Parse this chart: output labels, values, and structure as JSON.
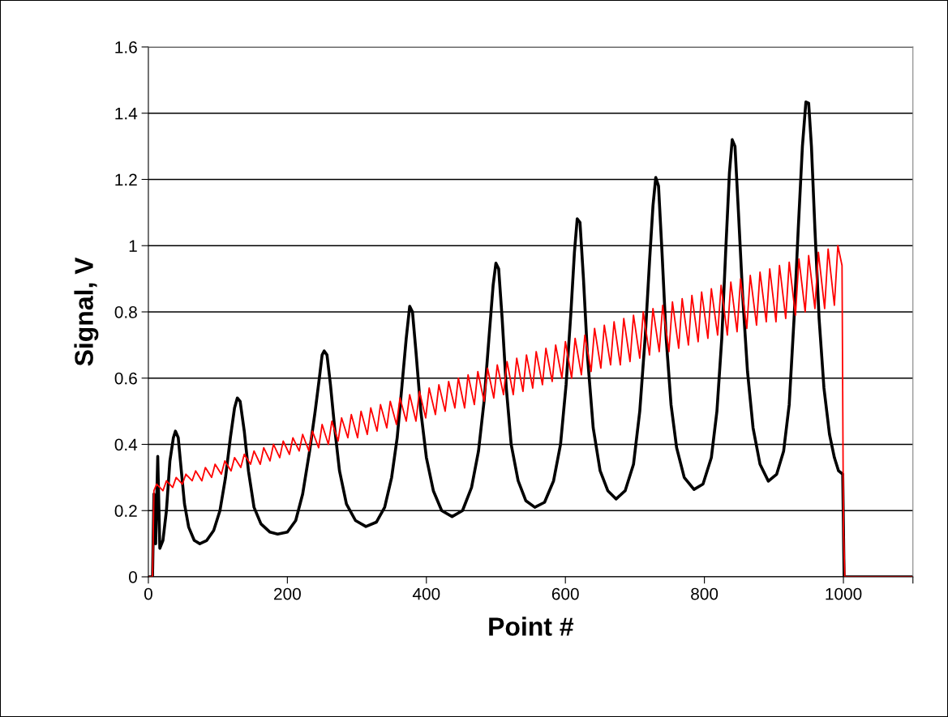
{
  "chart_data": {
    "type": "line",
    "xlabel": "Point #",
    "ylabel": "Signal, V",
    "xlim": [
      0,
      1100
    ],
    "xticks": [
      0,
      200,
      400,
      600,
      800,
      1000,
      {
        "value": 1100,
        "label": null
      }
    ],
    "ylim": [
      0,
      1.6
    ],
    "yticks": [
      0,
      0.2,
      0.4,
      0.6,
      0.8,
      1,
      1.2,
      1.4,
      1.6
    ],
    "grid": "y",
    "legend": false,
    "marker": "none",
    "line_style": "solid",
    "series": [
      {
        "color": "#000000",
        "x": [
          0,
          6,
          8,
          10.5,
          13.5,
          16.5,
          21,
          26,
          31,
          36,
          39,
          43,
          47,
          52,
          58,
          66,
          74,
          84,
          94,
          103,
          111,
          118,
          124,
          128,
          132,
          138,
          144,
          152,
          162,
          175,
          186,
          200,
          212,
          222,
          232,
          240,
          246,
          250,
          253,
          257,
          262,
          268,
          275,
          285,
          298,
          313,
          328,
          340,
          350,
          358,
          365,
          371,
          376,
          380,
          385,
          392,
          400,
          410,
          422,
          437,
          452,
          465,
          475,
          483,
          490,
          496,
          500,
          504,
          509,
          515,
          522,
          532,
          543,
          556,
          570,
          583,
          593,
          601,
          608,
          613,
          617,
          621,
          626,
          632,
          640,
          650,
          661,
          673,
          686,
          698,
          707,
          715,
          721,
          726,
          730,
          734,
          739,
          745,
          752,
          760,
          771,
          785,
          798,
          810,
          818,
          825,
          831,
          836,
          840,
          844,
          849,
          855,
          862,
          870,
          880,
          892,
          904,
          914,
          922,
          929,
          935,
          941,
          946,
          950,
          954,
          959,
          965,
          972,
          980,
          987,
          993,
          999,
          1001,
          1100
        ],
        "values": [
          0,
          0,
          0.25,
          0.1,
          0.364,
          0.086,
          0.11,
          0.2,
          0.35,
          0.42,
          0.44,
          0.42,
          0.33,
          0.22,
          0.15,
          0.11,
          0.1,
          0.11,
          0.14,
          0.2,
          0.3,
          0.42,
          0.51,
          0.54,
          0.53,
          0.44,
          0.32,
          0.21,
          0.16,
          0.135,
          0.129,
          0.135,
          0.17,
          0.25,
          0.38,
          0.5,
          0.6,
          0.67,
          0.682,
          0.67,
          0.58,
          0.45,
          0.32,
          0.22,
          0.17,
          0.152,
          0.165,
          0.21,
          0.3,
          0.42,
          0.58,
          0.72,
          0.817,
          0.8,
          0.68,
          0.5,
          0.36,
          0.26,
          0.2,
          0.182,
          0.2,
          0.27,
          0.38,
          0.53,
          0.72,
          0.88,
          0.947,
          0.93,
          0.78,
          0.57,
          0.4,
          0.29,
          0.23,
          0.21,
          0.225,
          0.29,
          0.4,
          0.58,
          0.8,
          0.98,
          1.081,
          1.07,
          0.9,
          0.66,
          0.45,
          0.32,
          0.26,
          0.235,
          0.26,
          0.34,
          0.5,
          0.73,
          0.95,
          1.12,
          1.206,
          1.18,
          0.98,
          0.72,
          0.52,
          0.39,
          0.3,
          0.264,
          0.28,
          0.36,
          0.5,
          0.72,
          1.0,
          1.22,
          1.32,
          1.3,
          1.1,
          0.85,
          0.62,
          0.45,
          0.34,
          0.289,
          0.31,
          0.38,
          0.52,
          0.78,
          1.05,
          1.3,
          1.434,
          1.43,
          1.3,
          1.05,
          0.78,
          0.57,
          0.43,
          0.36,
          0.32,
          0.31,
          0,
          0
        ]
      },
      {
        "color": "#ff0000",
        "x": [
          0,
          6,
          8,
          12,
          21,
          26,
          35,
          40,
          49,
          54,
          63,
          68,
          77,
          82,
          91,
          96,
          105,
          110,
          119,
          124,
          133,
          138,
          147,
          152,
          161,
          166,
          175,
          180,
          189,
          194,
          203,
          208,
          217,
          222,
          231,
          236,
          245,
          250,
          259,
          264,
          273,
          278,
          287,
          292,
          301,
          306,
          315,
          320,
          329,
          334,
          343,
          348,
          357,
          362,
          371,
          376,
          385,
          390,
          399,
          404,
          413,
          418,
          427,
          432,
          441,
          446,
          455,
          460,
          469,
          474,
          483,
          488,
          497,
          502,
          511,
          516,
          525,
          530,
          539,
          544,
          553,
          558,
          567,
          572,
          581,
          586,
          595,
          600,
          609,
          614,
          623,
          628,
          637,
          642,
          651,
          656,
          665,
          670,
          679,
          684,
          693,
          698,
          707,
          712,
          721,
          726,
          735,
          740,
          749,
          754,
          763,
          768,
          777,
          782,
          791,
          796,
          805,
          810,
          819,
          824,
          833,
          838,
          847,
          852,
          861,
          866,
          875,
          880,
          889,
          894,
          903,
          908,
          917,
          922,
          931,
          936,
          945,
          950,
          959,
          964,
          973,
          978,
          987,
          992,
          998,
          1000,
          1002,
          1100
        ],
        "values": [
          0,
          0,
          0.26,
          0.28,
          0.26,
          0.29,
          0.27,
          0.3,
          0.28,
          0.31,
          0.29,
          0.32,
          0.29,
          0.33,
          0.3,
          0.34,
          0.31,
          0.35,
          0.32,
          0.36,
          0.33,
          0.37,
          0.34,
          0.38,
          0.34,
          0.39,
          0.35,
          0.4,
          0.36,
          0.41,
          0.37,
          0.42,
          0.38,
          0.43,
          0.38,
          0.44,
          0.39,
          0.46,
          0.4,
          0.47,
          0.41,
          0.48,
          0.42,
          0.49,
          0.42,
          0.5,
          0.43,
          0.51,
          0.44,
          0.52,
          0.45,
          0.53,
          0.46,
          0.54,
          0.47,
          0.55,
          0.47,
          0.56,
          0.48,
          0.57,
          0.49,
          0.58,
          0.5,
          0.59,
          0.51,
          0.6,
          0.51,
          0.61,
          0.52,
          0.62,
          0.53,
          0.63,
          0.54,
          0.64,
          0.55,
          0.65,
          0.55,
          0.66,
          0.56,
          0.67,
          0.57,
          0.68,
          0.58,
          0.69,
          0.59,
          0.7,
          0.6,
          0.71,
          0.6,
          0.72,
          0.61,
          0.73,
          0.62,
          0.75,
          0.63,
          0.76,
          0.64,
          0.77,
          0.64,
          0.78,
          0.65,
          0.79,
          0.66,
          0.8,
          0.67,
          0.81,
          0.68,
          0.82,
          0.68,
          0.83,
          0.69,
          0.84,
          0.7,
          0.85,
          0.71,
          0.86,
          0.72,
          0.87,
          0.73,
          0.88,
          0.73,
          0.89,
          0.74,
          0.9,
          0.75,
          0.91,
          0.76,
          0.92,
          0.77,
          0.93,
          0.77,
          0.94,
          0.78,
          0.95,
          0.79,
          0.96,
          0.8,
          0.97,
          0.81,
          0.98,
          0.81,
          0.99,
          0.82,
          1.0,
          0.94,
          0.15,
          0,
          0
        ]
      }
    ]
  }
}
